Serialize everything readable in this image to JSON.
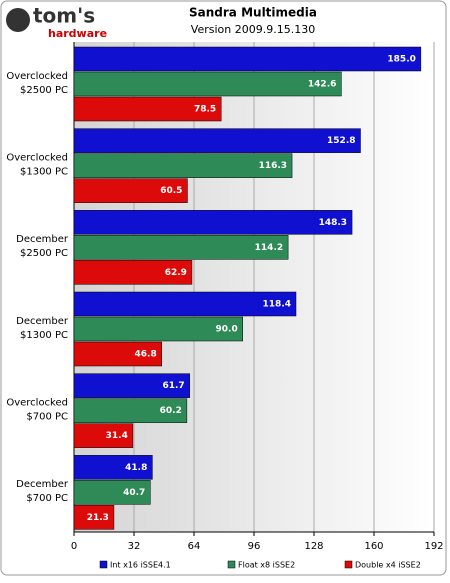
{
  "logo": {
    "name": "tom's",
    "sub": "hardware"
  },
  "chart_data": {
    "type": "bar",
    "orientation": "horizontal",
    "title": "Sandra Multimedia",
    "subtitle": "Version 2009.9.15.130",
    "categories": [
      [
        "Overclocked",
        "$2500 PC"
      ],
      [
        "Overclocked",
        "$1300 PC"
      ],
      [
        "December",
        "$2500 PC"
      ],
      [
        "December",
        "$1300 PC"
      ],
      [
        "Overclocked",
        "$700 PC"
      ],
      [
        "December",
        "$700 PC"
      ]
    ],
    "series": [
      {
        "name": "Int x16 iSSE4.1",
        "color": "#1010d0",
        "values": [
          185,
          152.8,
          148.3,
          118.4,
          61.7,
          41.8
        ],
        "value_labels": [
          "185.0",
          "152.8",
          "148.3",
          "118.4",
          "61.7",
          "41.8"
        ]
      },
      {
        "name": "Float x8 iSSE2",
        "color": "#2e8b57",
        "values": [
          142.6,
          116.3,
          114.2,
          90,
          60.2,
          40.7
        ],
        "value_labels": [
          "142.6",
          "116.3",
          "114.2",
          "90.0",
          "60.2",
          "40.7"
        ]
      },
      {
        "name": "Double x4 iSSE2",
        "color": "#dd0a0a",
        "values": [
          78.5,
          60.5,
          62.9,
          46.8,
          31.4,
          21.3
        ],
        "value_labels": [
          "78.5",
          "60.5",
          "62.9",
          "46.8",
          "31.4",
          "21.3"
        ]
      }
    ],
    "xlim": [
      0,
      192
    ],
    "xticks": [
      0,
      32,
      64,
      96,
      128,
      160,
      192
    ],
    "grid": true,
    "legend": "bottom"
  }
}
